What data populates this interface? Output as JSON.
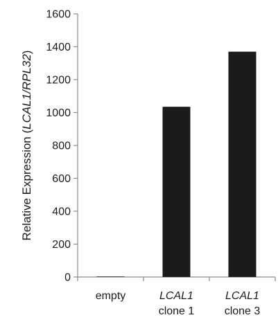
{
  "chart_data": {
    "type": "bar",
    "categories": [
      {
        "line1": "empty",
        "line2": "",
        "italic_line1": false
      },
      {
        "line1": "LCAL1",
        "line2": "clone 1",
        "italic_line1": true
      },
      {
        "line1": "LCAL1",
        "line2": "clone 3",
        "italic_line1": true
      }
    ],
    "values": [
      3,
      1035,
      1370
    ],
    "ylim": [
      0,
      1600
    ],
    "yticks": [
      0,
      200,
      400,
      600,
      800,
      1000,
      1200,
      1400,
      1600
    ],
    "ylabel": {
      "prefix": "Relative Expression (",
      "italic": "LCAL1/RPL32",
      "suffix": ")"
    },
    "bar_color": "#1b1b1b",
    "grid": false
  }
}
